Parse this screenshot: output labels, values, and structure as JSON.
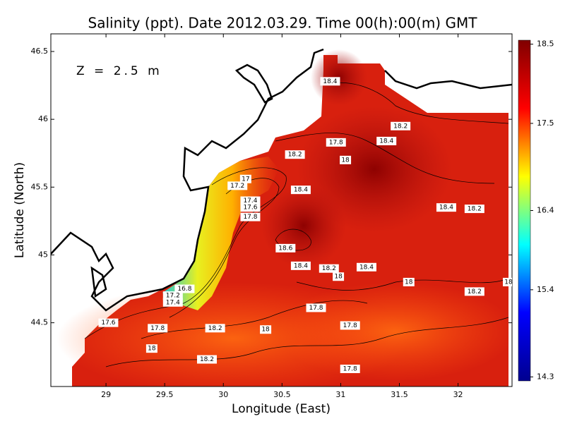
{
  "chart_data": {
    "type": "contour-map",
    "title": "Salinity (ppt). Date 2012.03.29. Time 00(h):00(m) GMT",
    "annotation": "Z = 2.5 m",
    "x_label": "Longitude (East)",
    "y_label": "Latitude (North)",
    "xlim": [
      28.53,
      32.46
    ],
    "xticks": [
      29,
      29.5,
      30,
      30.5,
      31,
      31.5,
      32
    ],
    "ylim": [
      44.03,
      46.63
    ],
    "yticks": [
      44.5,
      45,
      45.5,
      46,
      46.5
    ],
    "colorbar": {
      "lim": [
        14.25,
        18.55
      ],
      "ticks": [
        14.3,
        15.4,
        16.4,
        17.5,
        18.5
      ],
      "colors": [
        "#00008f",
        "#0000ff",
        "#00ffff",
        "#ffff00",
        "#ff0000",
        "#800000"
      ]
    },
    "contour_labels": [
      {
        "lon": 30.91,
        "lat": 46.28,
        "value": 18.4
      },
      {
        "lon": 31.51,
        "lat": 45.95,
        "value": 18.2
      },
      {
        "lon": 30.96,
        "lat": 45.83,
        "value": 17.8
      },
      {
        "lon": 31.39,
        "lat": 45.84,
        "value": 18.4
      },
      {
        "lon": 30.61,
        "lat": 45.74,
        "value": 18.2
      },
      {
        "lon": 31.04,
        "lat": 45.7,
        "value": 18
      },
      {
        "lon": 30.19,
        "lat": 45.56,
        "value": 17
      },
      {
        "lon": 30.12,
        "lat": 45.51,
        "value": 17.2
      },
      {
        "lon": 30.66,
        "lat": 45.48,
        "value": 18.4
      },
      {
        "lon": 30.23,
        "lat": 45.4,
        "value": 17.4
      },
      {
        "lon": 30.23,
        "lat": 45.35,
        "value": 17.6
      },
      {
        "lon": 31.9,
        "lat": 45.35,
        "value": 18.4
      },
      {
        "lon": 32.14,
        "lat": 45.34,
        "value": 18.2
      },
      {
        "lon": 30.23,
        "lat": 45.28,
        "value": 17.8
      },
      {
        "lon": 30.53,
        "lat": 45.05,
        "value": 18.6
      },
      {
        "lon": 30.66,
        "lat": 44.92,
        "value": 18.4
      },
      {
        "lon": 30.9,
        "lat": 44.9,
        "value": 18.2
      },
      {
        "lon": 31.22,
        "lat": 44.91,
        "value": 18.4
      },
      {
        "lon": 30.98,
        "lat": 44.84,
        "value": 18
      },
      {
        "lon": 31.58,
        "lat": 44.8,
        "value": 18
      },
      {
        "lon": 32.14,
        "lat": 44.73,
        "value": 18.2
      },
      {
        "lon": 32.43,
        "lat": 44.8,
        "value": 18
      },
      {
        "lon": 29.67,
        "lat": 44.75,
        "value": 16.8
      },
      {
        "lon": 29.57,
        "lat": 44.7,
        "value": 17.2
      },
      {
        "lon": 29.57,
        "lat": 44.65,
        "value": 17.4
      },
      {
        "lon": 30.79,
        "lat": 44.61,
        "value": 17.8
      },
      {
        "lon": 29.02,
        "lat": 44.5,
        "value": 17.6
      },
      {
        "lon": 29.44,
        "lat": 44.46,
        "value": 17.8
      },
      {
        "lon": 29.93,
        "lat": 44.46,
        "value": 18.2
      },
      {
        "lon": 30.36,
        "lat": 44.45,
        "value": 18
      },
      {
        "lon": 31.08,
        "lat": 44.48,
        "value": 17.8
      },
      {
        "lon": 29.39,
        "lat": 44.31,
        "value": 18
      },
      {
        "lon": 29.86,
        "lat": 44.23,
        "value": 18.2
      },
      {
        "lon": 31.08,
        "lat": 44.16,
        "value": 17.8
      }
    ]
  }
}
